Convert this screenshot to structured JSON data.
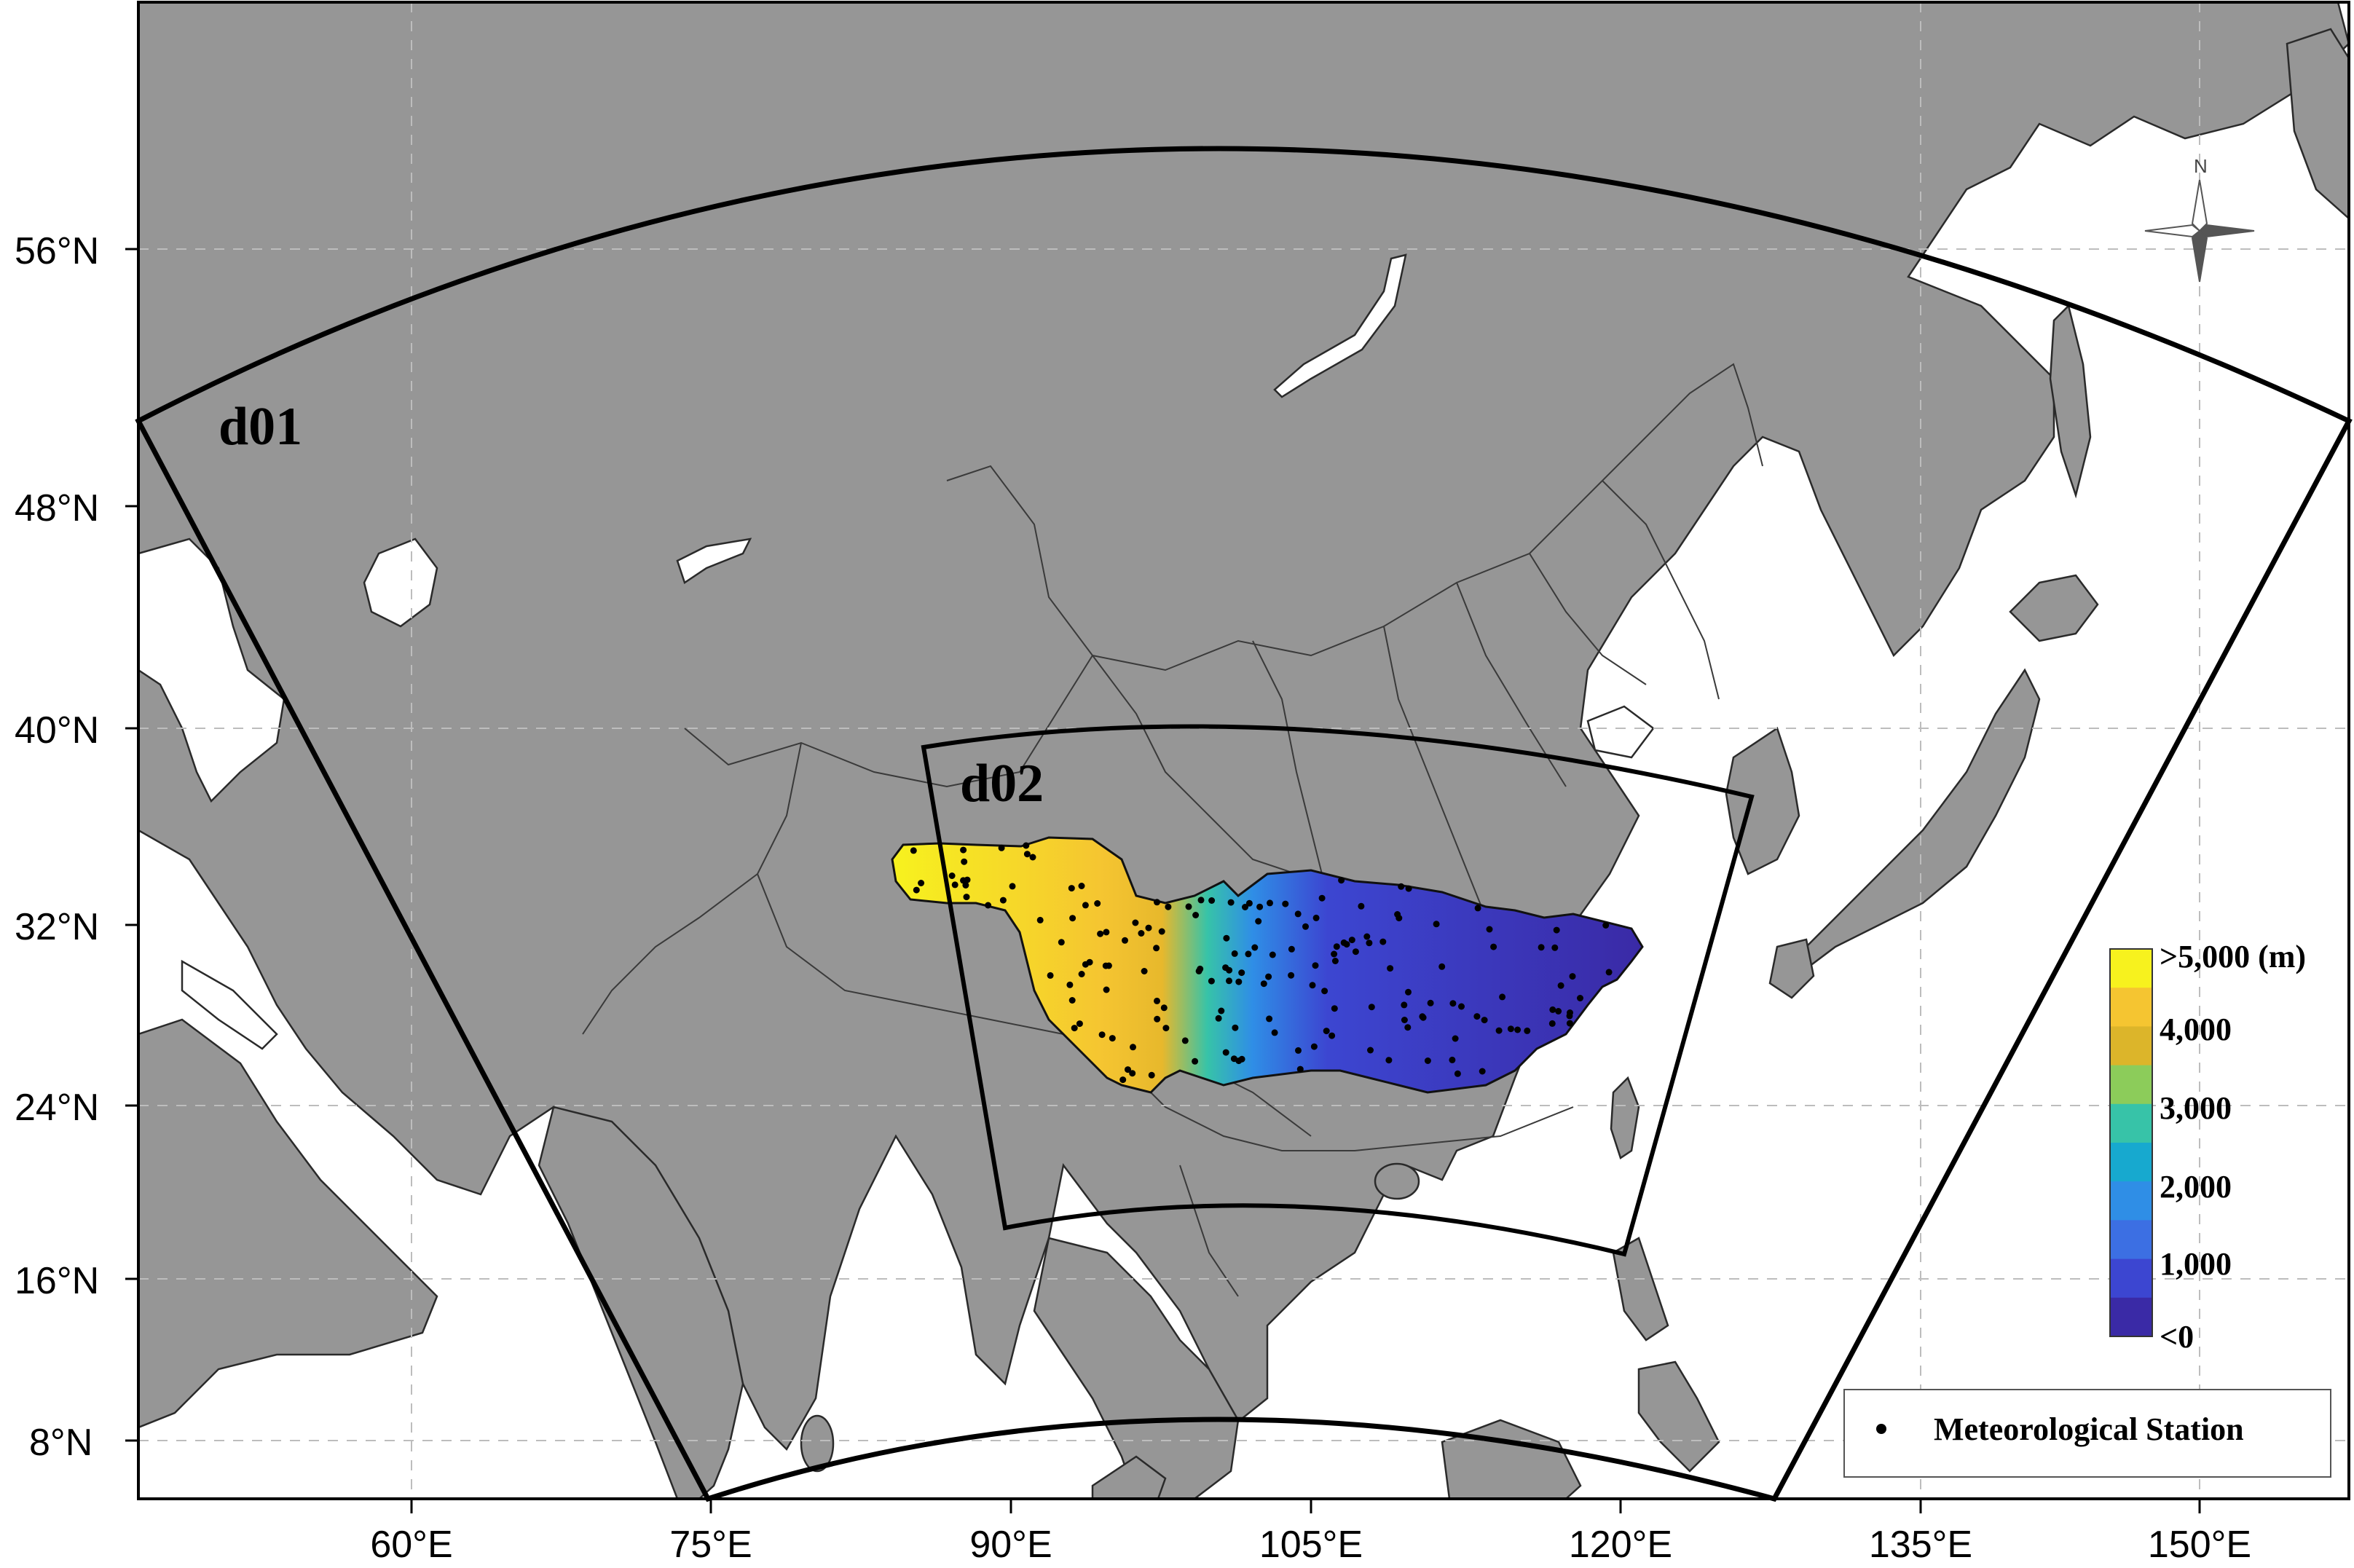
{
  "map": {
    "longitude_ticks": [
      "60°E",
      "75°E",
      "90°E",
      "105°E",
      "120°E",
      "135°E",
      "150°E"
    ],
    "latitude_ticks": [
      "56°N",
      "48°N",
      "40°N",
      "32°N",
      "24°N",
      "16°N",
      "8°N"
    ],
    "domains": [
      {
        "label": "d01"
      },
      {
        "label": "d02"
      }
    ],
    "north_arrow_label": "N",
    "colors": {
      "land": "#969696",
      "water": "#ffffff",
      "border": "#3a3a3a",
      "domain_outline": "#000000",
      "station": "#000000"
    }
  },
  "elevation_legend": {
    "unit": "(m)",
    "labels": [
      ">5,000 (m)",
      "4,000",
      "3,000",
      "2,000",
      "1,000",
      "<0"
    ],
    "colors": [
      "#f7f21e",
      "#f5c531",
      "#dcb52a",
      "#8ccc5a",
      "#37c3a8",
      "#17a9cf",
      "#2f8ee6",
      "#3c6fe3",
      "#3c46d1",
      "#3a2aa6"
    ]
  },
  "station_legend": {
    "label": "Meteorological Station"
  }
}
